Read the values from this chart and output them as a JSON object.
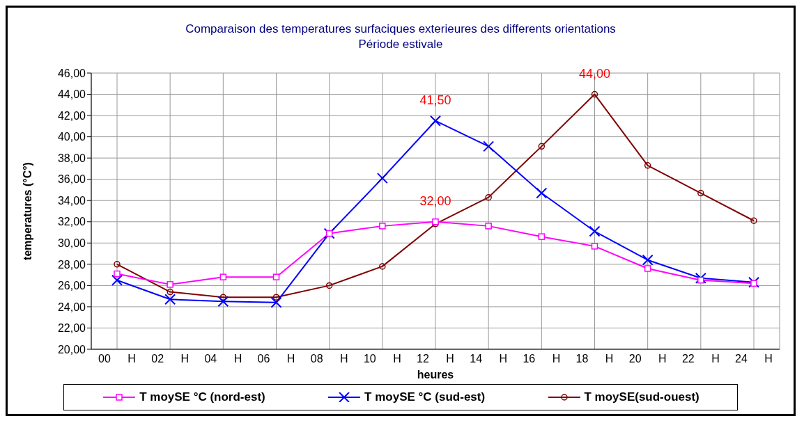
{
  "chart_data": {
    "type": "line",
    "title": "Comparaison des temperatures surfaciques exterieures des differents orientations",
    "subtitle": "Période estivale",
    "xlabel": "heures",
    "ylabel": "temperatures (°C°)",
    "categories": [
      "00 H",
      "02 H",
      "04 H",
      "06 H",
      "08 H",
      "10 H",
      "12 H",
      "14 H",
      "16 H",
      "18 H",
      "20 H",
      "22 H",
      "24 H"
    ],
    "ylim": [
      20,
      46
    ],
    "yticks": [
      {
        "value": 20,
        "label": "20,00"
      },
      {
        "value": 22,
        "label": "22,00"
      },
      {
        "value": 24,
        "label": "24,00"
      },
      {
        "value": 26,
        "label": "26,00"
      },
      {
        "value": 28,
        "label": "28,00"
      },
      {
        "value": 30,
        "label": "30,00"
      },
      {
        "value": 32,
        "label": "32,00"
      },
      {
        "value": 34,
        "label": "34,00"
      },
      {
        "value": 36,
        "label": "36,00"
      },
      {
        "value": 38,
        "label": "38,00"
      },
      {
        "value": 40,
        "label": "40,00"
      },
      {
        "value": 42,
        "label": "42,00"
      },
      {
        "value": 44,
        "label": "44,00"
      },
      {
        "value": 46,
        "label": "46,00"
      }
    ],
    "grid": true,
    "legend": "bottom",
    "series": [
      {
        "name": "T moySE °C (nord-est)",
        "color": "#ff00ff",
        "marker": "square",
        "values": [
          27.1,
          26.1,
          26.8,
          26.8,
          30.9,
          31.6,
          32.0,
          31.6,
          30.6,
          29.7,
          27.6,
          26.5,
          26.2
        ],
        "value_labels": [
          null,
          null,
          null,
          null,
          null,
          null,
          "32,00",
          null,
          null,
          null,
          null,
          null,
          null
        ]
      },
      {
        "name": "T moySE °C (sud-est)",
        "color": "#0000ff",
        "marker": "cross",
        "values": [
          26.5,
          24.7,
          24.5,
          24.4,
          30.9,
          36.1,
          41.5,
          39.1,
          34.7,
          31.1,
          28.4,
          26.7,
          26.3
        ],
        "value_labels": [
          null,
          null,
          null,
          null,
          null,
          null,
          "41,50",
          null,
          null,
          null,
          null,
          null,
          null
        ]
      },
      {
        "name": "T moySE(sud-ouest)",
        "color": "#800000",
        "marker": "circle",
        "values": [
          28.0,
          25.4,
          24.9,
          24.9,
          26.0,
          27.8,
          31.8,
          34.3,
          39.1,
          44.0,
          37.3,
          34.7,
          32.1
        ],
        "value_labels": [
          null,
          null,
          null,
          null,
          null,
          null,
          null,
          null,
          null,
          "44,00",
          null,
          null,
          null
        ]
      }
    ]
  }
}
